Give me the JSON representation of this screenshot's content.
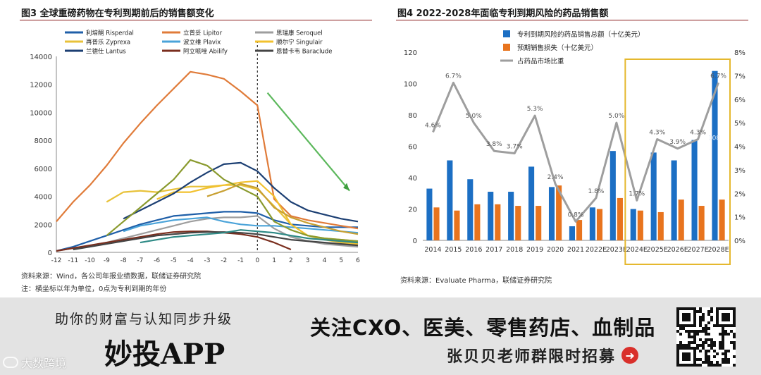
{
  "left_figure": {
    "title": "图3  全球重磅药物在专利到期前后的销售额变化",
    "source": "资料来源：Wind，各公司年报业绩数据，联储证券研究院",
    "note": "注：横坐标以年为单位，0点为专利到期的年份"
  },
  "right_figure": {
    "title": "图4  2022-2028年面临专利到期风险的药品销售额",
    "source": "资料来源：Evaluate Pharma，联储证券研究院"
  },
  "banner": {
    "left_tagline": "助你的财富与认知同步升级",
    "app_name": "妙投APP",
    "focus_text": "关注CXO、医美、零售药店、血制品",
    "recruit_text": "张贝贝老师群限时招募",
    "watermark": "大数跨境"
  },
  "chart_data": [
    {
      "type": "line",
      "title": "全球重磅药物在专利到期前后的销售额变化",
      "xlabel": "",
      "ylabel": "",
      "x": [
        -12,
        -11,
        -10,
        -9,
        -8,
        -7,
        -6,
        -5,
        -4,
        -3,
        -2,
        -1,
        0,
        1,
        2,
        3,
        4,
        5,
        6
      ],
      "xlim": [
        -12,
        6
      ],
      "ylim": [
        0,
        14000
      ],
      "yticks": [
        0,
        2000,
        4000,
        6000,
        8000,
        10000,
        12000,
        14000
      ],
      "xticks": [
        -12,
        -11,
        -10,
        -9,
        -8,
        -7,
        -6,
        -5,
        -4,
        -3,
        -2,
        -1,
        0,
        1,
        2,
        3,
        4,
        5,
        6
      ],
      "series": [
        {
          "name": "利培酮 Risperdal",
          "color": "#1f5fa8",
          "values": [
            100,
            400,
            800,
            1200,
            1600,
            2000,
            2300,
            2600,
            2700,
            2800,
            2900,
            2900,
            2800,
            2300,
            2000,
            1900,
            1800,
            1800,
            1800
          ]
        },
        {
          "name": "立普妥 Lipitor",
          "color": "#e07b39",
          "values": [
            2200,
            3600,
            4800,
            6200,
            7800,
            9200,
            10500,
            11700,
            12900,
            12700,
            12400,
            11500,
            10500,
            3800,
            2600,
            2300,
            2100,
            1900,
            1700
          ]
        },
        {
          "name": "思瑞康 Seroquel",
          "color": "#9e9e9e",
          "values": [
            100,
            300,
            500,
            700,
            1000,
            1300,
            1600,
            1900,
            2200,
            2400,
            2500,
            2500,
            2600,
            1700,
            1100,
            800,
            600,
            500,
            400
          ]
        },
        {
          "name": "再普乐 Zyprexa",
          "color": "#e8c23a",
          "values": [
            null,
            null,
            null,
            3600,
            4300,
            4400,
            4300,
            4500,
            4700,
            4700,
            4800,
            4800,
            4500,
            3300,
            2000,
            1200,
            1000,
            900,
            800
          ]
        },
        {
          "name": "波立维 Plavix",
          "color": "#4aa3d9",
          "values": [
            null,
            null,
            null,
            null,
            1500,
            1900,
            2100,
            2300,
            2400,
            2500,
            2200,
            2000,
            1900,
            1900,
            1800,
            1700,
            1600,
            1500,
            1400
          ]
        },
        {
          "name": "顺尔宁 Singulair",
          "color": "#f2c12e",
          "values": [
            null,
            null,
            null,
            null,
            null,
            null,
            3800,
            4300,
            4300,
            4600,
            4800,
            5000,
            5100,
            4000,
            2000,
            1200,
            900,
            700,
            600
          ]
        },
        {
          "name": "兰德仕 Lantus",
          "color": "#1c3f73",
          "values": [
            null,
            null,
            null,
            null,
            2400,
            3000,
            3600,
            4200,
            5000,
            5700,
            6300,
            6400,
            5800,
            4600,
            3600,
            3000,
            2700,
            2400,
            2200
          ]
        },
        {
          "name": "阿立哌唑 Abilify",
          "color": "#7a2e1e",
          "values": [
            100,
            300,
            500,
            700,
            900,
            1100,
            1300,
            1450,
            1500,
            1500,
            1400,
            1300,
            1100,
            700,
            200,
            null,
            null,
            null,
            null
          ]
        },
        {
          "name": "恩替卡韦 Baraclude",
          "color": "#444444",
          "values": [
            null,
            200,
            400,
            600,
            800,
            1000,
            1200,
            1300,
            1400,
            1450,
            1450,
            1400,
            1300,
            1100,
            900,
            800,
            700,
            600,
            500
          ]
        },
        {
          "name": "",
          "color": "#8a9a2e",
          "values": [
            null,
            null,
            null,
            1200,
            2200,
            3200,
            4200,
            5200,
            6600,
            6200,
            5200,
            4600,
            4000,
            2200,
            1600,
            1200,
            1000,
            900,
            800
          ]
        },
        {
          "name": "",
          "color": "#2e8a86",
          "values": [
            null,
            null,
            null,
            null,
            null,
            700,
            900,
            1100,
            1200,
            1300,
            1400,
            1600,
            1500,
            1400,
            1200,
            1000,
            900,
            800,
            700
          ]
        },
        {
          "name": "",
          "color": "#c8a032",
          "values": [
            null,
            null,
            null,
            null,
            null,
            null,
            null,
            null,
            null,
            4000,
            4400,
            4900,
            4600,
            3200,
            2500,
            2100,
            1800,
            1500,
            1300
          ]
        }
      ],
      "annotation": "dashed vertical line at x=0; green arrow trending down after patent expiry",
      "legend_position": "top"
    },
    {
      "type": "bar",
      "title": "2022-2028年面临专利到期风险的药品销售额",
      "categories": [
        "2014",
        "2015",
        "2016",
        "2017",
        "2018",
        "2019",
        "2020",
        "2021",
        "2022E",
        "2023E",
        "2024E",
        "2025E",
        "2026E",
        "2027E",
        "2028E"
      ],
      "ylim": [
        0,
        120
      ],
      "yticks": [
        0,
        20,
        40,
        60,
        80,
        100,
        120
      ],
      "y2lim": [
        0,
        8
      ],
      "y2ticks": [
        "0%",
        "1%",
        "2%",
        "3%",
        "4%",
        "5%",
        "6%",
        "7%",
        "8%"
      ],
      "series": [
        {
          "name": "专利到期风险的药品销售总额（十亿美元）",
          "type": "bar",
          "color": "#1c6fc4",
          "values": [
            33,
            51,
            39,
            31,
            31,
            47,
            34,
            9,
            21,
            57,
            20,
            56,
            51,
            64,
            108
          ]
        },
        {
          "name": "预期销售损失（十亿美元）",
          "type": "bar",
          "color": "#e8741e",
          "values": [
            21,
            19,
            23,
            23,
            22,
            22,
            35,
            13,
            20,
            27,
            19,
            18,
            26,
            22,
            26
          ]
        },
        {
          "name": "占药品市场比重",
          "type": "line",
          "axis": "y2",
          "color": "#9e9e9e",
          "values": [
            4.6,
            6.7,
            5.0,
            3.8,
            3.7,
            5.3,
            2.4,
            0.8,
            1.8,
            5.0,
            1.7,
            4.3,
            3.9,
            4.3,
            6.7
          ],
          "labels": [
            "4.6%",
            "6.7%",
            "5.0%",
            "3.8%",
            "3.7%",
            "5.3%",
            "2.4%",
            "0.8%",
            "1.8%",
            "5.0%",
            "1.7%",
            "4.3%",
            "3.9%",
            "4.3%",
            "6.7%"
          ]
        }
      ],
      "extra_labels": {
        "2028E_total": "108"
      },
      "highlight_range": [
        "2024E",
        "2028E"
      ],
      "legend_position": "top-left"
    }
  ]
}
